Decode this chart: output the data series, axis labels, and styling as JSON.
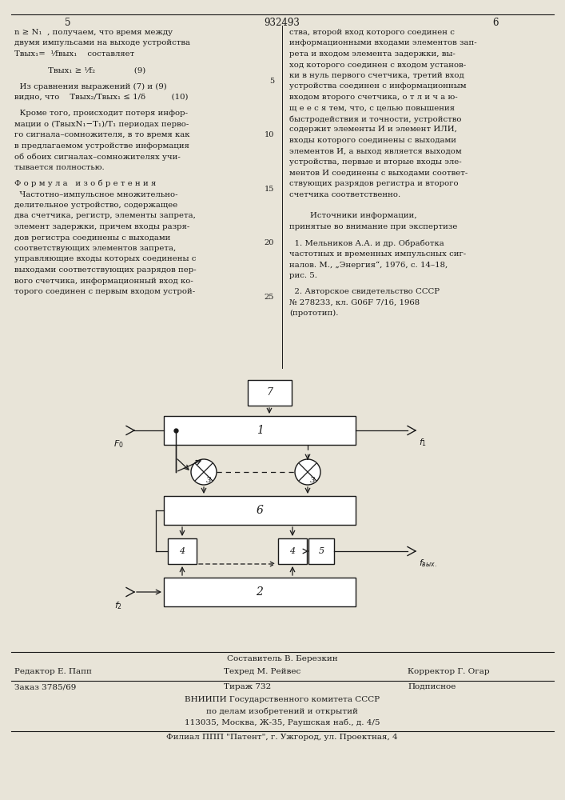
{
  "bg_color": "#e8e4d8",
  "text_color": "#1a1a1a",
  "title_number": "932493",
  "page_left": "5",
  "page_right": "6",
  "footer_line1": "Составитель В. Березкин",
  "footer_line2_left": "Редактор Е. Папп",
  "footer_line2_mid": "Техред М. Рейвес",
  "footer_line2_right": "Корректор Г. Огар",
  "footer_line3_left": "Заказ 3785/69",
  "footer_line3_mid": "Тираж 732",
  "footer_line3_right": "Подписное",
  "footer_line4": "ВНИИПИ Государственного комитета СССР",
  "footer_line5": "по делам изобретений и открытий",
  "footer_line6": "113035, Москва, Ж-35, Раушская наб., д. 4/5",
  "footer_line7": "Филиал ППП \"Патент\", г. Ужгород, ул. Проектная, 4"
}
